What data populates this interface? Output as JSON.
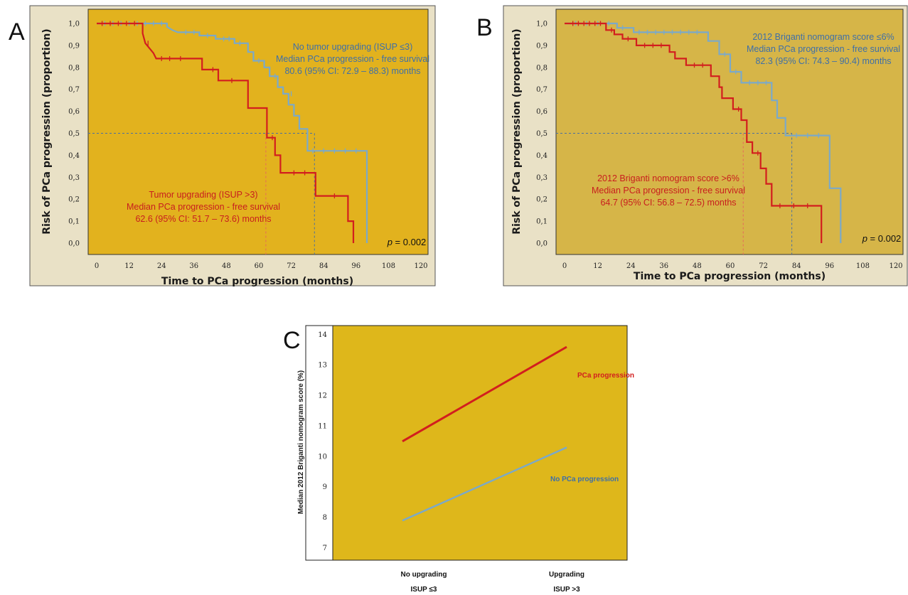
{
  "colors": {
    "plot_bg_a": "#E2B21E",
    "plot_bg_b": "#D6B548",
    "plot_bg_c": "#DEB71B",
    "frame_bg": "#E9E1C6",
    "red": "#D21E1E",
    "blue": "#7BA9C9",
    "annotation_blue": "#3E6FA8",
    "annotation_red": "#C81E1E"
  },
  "panels": {
    "a": "A",
    "b": "B",
    "c": "C"
  },
  "chart_data": [
    {
      "type": "line",
      "panel": "A",
      "ylabel": "Risk of PCa progression (proportion)",
      "xlabel": "Time to PCa progression (months)",
      "xticks": [
        0,
        12,
        24,
        36,
        48,
        60,
        72,
        84,
        96,
        108,
        120
      ],
      "yticks": [
        "0,0",
        "0,1",
        "0,2",
        "0,3",
        "0,4",
        "0,5",
        "0,6",
        "0,7",
        "0,8",
        "0,9",
        "1,0"
      ],
      "xlim": [
        0,
        120
      ],
      "ylim": [
        0,
        1
      ],
      "p_value": "= 0.002",
      "median_line": 0.5,
      "series": [
        {
          "color": "red",
          "steps": [
            [
              0,
              1
            ],
            [
              17,
              1
            ],
            [
              17,
              0.955
            ],
            [
              18,
              0.91
            ],
            [
              21,
              0.865
            ],
            [
              22,
              0.84
            ],
            [
              39,
              0.84
            ],
            [
              39,
              0.79
            ],
            [
              45,
              0.79
            ],
            [
              45,
              0.74
            ],
            [
              56,
              0.74
            ],
            [
              56,
              0.615
            ],
            [
              63,
              0.615
            ],
            [
              63,
              0.48
            ],
            [
              66,
              0.48
            ],
            [
              66,
              0.4
            ],
            [
              68,
              0.4
            ],
            [
              68,
              0.32
            ],
            [
              81,
              0.32
            ],
            [
              81,
              0.215
            ],
            [
              93,
              0.215
            ],
            [
              93,
              0.1
            ],
            [
              95,
              0.1
            ],
            [
              95,
              0
            ]
          ],
          "censor": [
            [
              2,
              1
            ],
            [
              5,
              1
            ],
            [
              8,
              1
            ],
            [
              11,
              1
            ],
            [
              14,
              1
            ],
            [
              19,
              0.91
            ],
            [
              24,
              0.84
            ],
            [
              27,
              0.84
            ],
            [
              31,
              0.84
            ],
            [
              43,
              0.79
            ],
            [
              50,
              0.74
            ],
            [
              65,
              0.48
            ],
            [
              73,
              0.32
            ],
            [
              77,
              0.32
            ],
            [
              88,
              0.215
            ]
          ]
        },
        {
          "color": "blue",
          "steps": [
            [
              0,
              1
            ],
            [
              26,
              1
            ],
            [
              26,
              0.985
            ],
            [
              28,
              0.97
            ],
            [
              30,
              0.96
            ],
            [
              38,
              0.96
            ],
            [
              38,
              0.945
            ],
            [
              44,
              0.945
            ],
            [
              44,
              0.93
            ],
            [
              51,
              0.93
            ],
            [
              51,
              0.91
            ],
            [
              56,
              0.91
            ],
            [
              56,
              0.87
            ],
            [
              58,
              0.87
            ],
            [
              58,
              0.83
            ],
            [
              62,
              0.83
            ],
            [
              62,
              0.8
            ],
            [
              64,
              0.8
            ],
            [
              64,
              0.76
            ],
            [
              67,
              0.76
            ],
            [
              67,
              0.71
            ],
            [
              69,
              0.71
            ],
            [
              69,
              0.68
            ],
            [
              71,
              0.68
            ],
            [
              71,
              0.63
            ],
            [
              73,
              0.63
            ],
            [
              73,
              0.58
            ],
            [
              75,
              0.58
            ],
            [
              75,
              0.52
            ],
            [
              78,
              0.52
            ],
            [
              78,
              0.42
            ],
            [
              100,
              0.42
            ],
            [
              100,
              0
            ]
          ],
          "censor": [
            [
              3,
              1
            ],
            [
              6,
              1
            ],
            [
              9,
              1
            ],
            [
              12,
              1
            ],
            [
              15,
              1
            ],
            [
              18,
              1
            ],
            [
              21,
              1
            ],
            [
              24,
              1
            ],
            [
              33,
              0.96
            ],
            [
              36,
              0.96
            ],
            [
              41,
              0.945
            ],
            [
              47,
              0.93
            ],
            [
              49,
              0.93
            ],
            [
              53,
              0.91
            ],
            [
              60,
              0.83
            ],
            [
              66,
              0.76
            ],
            [
              72,
              0.68
            ],
            [
              80,
              0.42
            ],
            [
              84,
              0.42
            ],
            [
              88,
              0.42
            ],
            [
              92,
              0.42
            ],
            [
              96,
              0.42
            ]
          ]
        }
      ],
      "median_times": [
        62.6,
        80.6
      ],
      "annotations": {
        "blue": [
          "No tumor upgrading (ISUP ≤3)",
          "Median PCa progression - free survival",
          "80.6 (95% CI: 72.9 – 88.3) months"
        ],
        "red": [
          "Tumor upgrading (ISUP >3)",
          "Median PCa progression - free survival",
          "62.6 (95% CI: 51.7 – 73.6) months"
        ]
      }
    },
    {
      "type": "line",
      "panel": "B",
      "ylabel": "Risk of PCa progression (proportion)",
      "xlabel": "Time to PCa progression (months)",
      "xticks": [
        0,
        12,
        24,
        36,
        48,
        60,
        72,
        84,
        96,
        108,
        120
      ],
      "yticks": [
        "0,0",
        "0,1",
        "0,2",
        "0,3",
        "0,4",
        "0,5",
        "0,6",
        "0,7",
        "0,8",
        "0,9",
        "1,0"
      ],
      "xlim": [
        0,
        120
      ],
      "ylim": [
        0,
        1
      ],
      "p_value": "= 0.002",
      "median_line": 0.5,
      "series": [
        {
          "color": "red",
          "steps": [
            [
              0,
              1
            ],
            [
              15,
              1
            ],
            [
              15,
              0.97
            ],
            [
              18,
              0.97
            ],
            [
              18,
              0.95
            ],
            [
              21,
              0.95
            ],
            [
              21,
              0.93
            ],
            [
              26,
              0.93
            ],
            [
              26,
              0.9
            ],
            [
              38,
              0.9
            ],
            [
              38,
              0.87
            ],
            [
              40,
              0.87
            ],
            [
              40,
              0.84
            ],
            [
              44,
              0.84
            ],
            [
              44,
              0.81
            ],
            [
              53,
              0.81
            ],
            [
              53,
              0.76
            ],
            [
              56,
              0.76
            ],
            [
              56,
              0.71
            ],
            [
              57,
              0.71
            ],
            [
              57,
              0.66
            ],
            [
              61,
              0.66
            ],
            [
              61,
              0.61
            ],
            [
              64,
              0.61
            ],
            [
              64,
              0.56
            ],
            [
              66,
              0.56
            ],
            [
              66,
              0.46
            ],
            [
              68,
              0.46
            ],
            [
              68,
              0.41
            ],
            [
              71,
              0.41
            ],
            [
              71,
              0.34
            ],
            [
              73,
              0.34
            ],
            [
              73,
              0.27
            ],
            [
              75,
              0.27
            ],
            [
              75,
              0.17
            ],
            [
              93,
              0.17
            ],
            [
              93,
              0
            ]
          ],
          "censor": [
            [
              3,
              1
            ],
            [
              5,
              1
            ],
            [
              7,
              1
            ],
            [
              9,
              1
            ],
            [
              11,
              1
            ],
            [
              13,
              1
            ],
            [
              17,
              0.97
            ],
            [
              23,
              0.93
            ],
            [
              29,
              0.9
            ],
            [
              32,
              0.9
            ],
            [
              35,
              0.9
            ],
            [
              47,
              0.81
            ],
            [
              50,
              0.81
            ],
            [
              63,
              0.61
            ],
            [
              70,
              0.41
            ],
            [
              78,
              0.17
            ],
            [
              83,
              0.17
            ],
            [
              88,
              0.17
            ]
          ]
        },
        {
          "color": "blue",
          "steps": [
            [
              0,
              1
            ],
            [
              19,
              1
            ],
            [
              19,
              0.98
            ],
            [
              25,
              0.98
            ],
            [
              25,
              0.96
            ],
            [
              52,
              0.96
            ],
            [
              52,
              0.92
            ],
            [
              56,
              0.92
            ],
            [
              56,
              0.86
            ],
            [
              60,
              0.86
            ],
            [
              60,
              0.78
            ],
            [
              64,
              0.78
            ],
            [
              64,
              0.73
            ],
            [
              75,
              0.73
            ],
            [
              75,
              0.65
            ],
            [
              77,
              0.65
            ],
            [
              77,
              0.57
            ],
            [
              80,
              0.57
            ],
            [
              80,
              0.49
            ],
            [
              96,
              0.49
            ],
            [
              96,
              0.25
            ],
            [
              100,
              0.25
            ],
            [
              100,
              0
            ]
          ],
          "censor": [
            [
              4,
              1
            ],
            [
              8,
              1
            ],
            [
              12,
              1
            ],
            [
              16,
              1
            ],
            [
              21,
              0.98
            ],
            [
              27,
              0.96
            ],
            [
              30,
              0.96
            ],
            [
              33,
              0.96
            ],
            [
              36,
              0.96
            ],
            [
              39,
              0.96
            ],
            [
              42,
              0.96
            ],
            [
              45,
              0.96
            ],
            [
              48,
              0.96
            ],
            [
              58,
              0.86
            ],
            [
              62,
              0.78
            ],
            [
              67,
              0.73
            ],
            [
              70,
              0.73
            ],
            [
              73,
              0.73
            ],
            [
              84,
              0.49
            ],
            [
              88,
              0.49
            ],
            [
              92,
              0.49
            ]
          ]
        }
      ],
      "median_times": [
        64.7,
        82.3
      ],
      "annotations": {
        "blue": [
          "2012 Briganti nomogram score ≤6%",
          "Median PCa progression - free survival",
          "82.3 (95% CI: 74.3 – 90.4) months"
        ],
        "red": [
          "2012 Briganti nomogram score >6%",
          "Median PCa progression - free survival",
          "64.7 (95% CI: 56.8 – 72.5) months"
        ]
      }
    },
    {
      "type": "line",
      "panel": "C",
      "ylabel": "Median 2012 Briganti nomogram score (%)",
      "yticks": [
        7,
        8,
        9,
        10,
        11,
        12,
        13,
        14
      ],
      "ylim": [
        6.6,
        14.3
      ],
      "categories": [
        [
          "No upgrading",
          "ISUP ≤3"
        ],
        [
          "Upgrading",
          "ISUP >3"
        ]
      ],
      "series": [
        {
          "name": "PCa progression",
          "color": "red",
          "values": [
            10.5,
            13.6
          ]
        },
        {
          "name": "No PCa progression",
          "color": "blue",
          "values": [
            7.9,
            10.3
          ]
        }
      ]
    }
  ]
}
